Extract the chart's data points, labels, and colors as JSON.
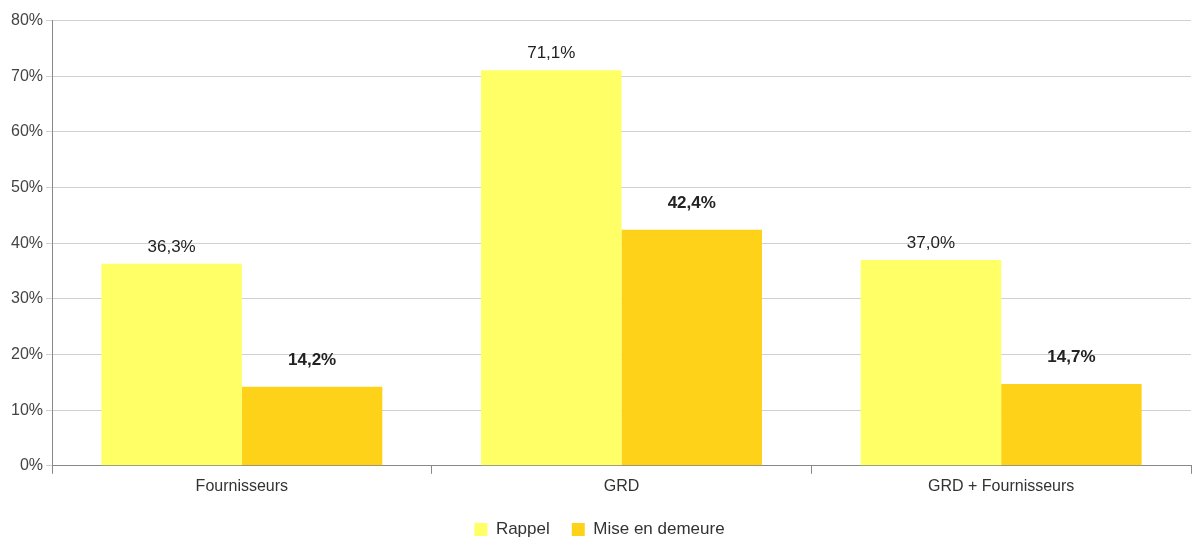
{
  "chart_data": {
    "type": "bar",
    "categories": [
      "Fournisseurs",
      "GRD",
      "GRD + Fournisseurs"
    ],
    "series": [
      {
        "name": "Rappel",
        "color": "#ffff66",
        "values": [
          36.3,
          71.1,
          37.0
        ],
        "value_labels": [
          "36,3%",
          "71,1%",
          "37,0%"
        ]
      },
      {
        "name": "Mise en demeure",
        "color": "#ffd21a",
        "values": [
          14.2,
          42.4,
          14.7
        ],
        "value_labels": [
          "14,2%",
          "42,4%",
          "14,7%"
        ]
      }
    ],
    "ylim": [
      0,
      80
    ],
    "yticks": [
      {
        "value": 0,
        "label": "0%"
      },
      {
        "value": 10,
        "label": "10%"
      },
      {
        "value": 20,
        "label": "20%"
      },
      {
        "value": 30,
        "label": "30%"
      },
      {
        "value": 40,
        "label": "40%"
      },
      {
        "value": 50,
        "label": "50%"
      },
      {
        "value": 60,
        "label": "60%"
      },
      {
        "value": 70,
        "label": "70%"
      },
      {
        "value": 80,
        "label": "80%"
      }
    ],
    "grid": "y",
    "legend": "bottom"
  }
}
